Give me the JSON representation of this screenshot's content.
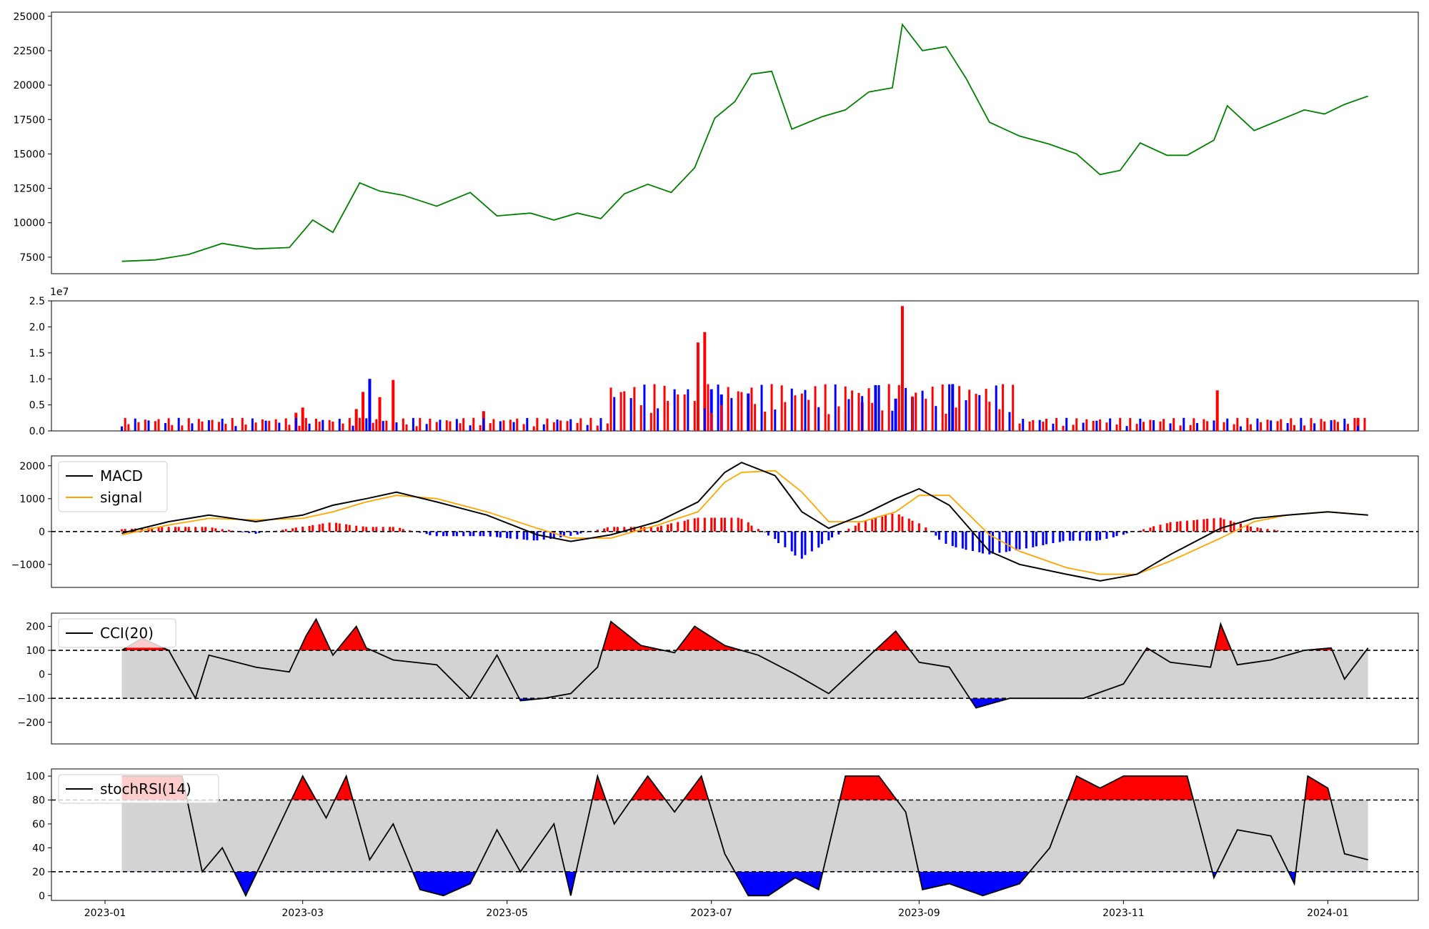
{
  "colors": {
    "price": "#008000",
    "up": "#ff0000",
    "down": "#0000ff",
    "macd": "#000000",
    "signal": "#ffa500",
    "band": "#d3d3d3",
    "zero": "#000000"
  },
  "chart_data": [
    {
      "type": "line",
      "name": "price",
      "ylim": [
        6300,
        25300
      ],
      "yticks": [
        "7500",
        "10000",
        "12500",
        "15000",
        "17500",
        "20000",
        "22500",
        "25000"
      ],
      "series": [
        {
          "color": "#008000",
          "x": [
            "2023-01-06",
            "2023-01-16",
            "2023-01-26",
            "2023-02-05",
            "2023-02-15",
            "2023-02-25",
            "2023-03-04",
            "2023-03-10",
            "2023-03-18",
            "2023-03-24",
            "2023-03-31",
            "2023-04-10",
            "2023-04-20",
            "2023-04-28",
            "2023-05-08",
            "2023-05-15",
            "2023-05-22",
            "2023-05-29",
            "2023-06-05",
            "2023-06-12",
            "2023-06-19",
            "2023-06-26",
            "2023-07-02",
            "2023-07-08",
            "2023-07-13",
            "2023-07-19",
            "2023-07-25",
            "2023-08-03",
            "2023-08-10",
            "2023-08-17",
            "2023-08-24",
            "2023-08-27",
            "2023-09-02",
            "2023-09-09",
            "2023-09-15",
            "2023-09-22",
            "2023-10-01",
            "2023-10-10",
            "2023-10-18",
            "2023-10-25",
            "2023-10-31",
            "2023-11-06",
            "2023-11-14",
            "2023-11-20",
            "2023-11-28",
            "2023-12-02",
            "2023-12-10",
            "2023-12-18",
            "2023-12-25",
            "2023-12-31",
            "2024-01-06",
            "2024-01-13"
          ],
          "values": [
            7200,
            7300,
            7700,
            8500,
            8100,
            8200,
            10200,
            9300,
            12900,
            12300,
            12000,
            11200,
            12200,
            10500,
            10700,
            10200,
            10700,
            10300,
            12100,
            12800,
            12200,
            14000,
            17600,
            18800,
            20800,
            21000,
            16800,
            17700,
            18200,
            19500,
            19800,
            24400,
            22500,
            22800,
            20500,
            17300,
            16300,
            15700,
            15000,
            13500,
            13800,
            15800,
            14900,
            14900,
            16000,
            18500,
            16700,
            17500,
            18200,
            17900,
            18600,
            19200
          ]
        }
      ]
    },
    {
      "type": "bar",
      "name": "volume",
      "multiplier_label": "1e7",
      "ylim": [
        0,
        2.5
      ],
      "yticks": [
        "0.0",
        "0.5",
        "1.0",
        "1.5",
        "2.0",
        "2.5"
      ],
      "series": [
        {
          "name": "spikes",
          "x": [
            "2023-02-27",
            "2023-03-01",
            "2023-03-17",
            "2023-03-19",
            "2023-03-21",
            "2023-03-24",
            "2023-03-28",
            "2023-04-24",
            "2023-06-27",
            "2023-06-29",
            "2023-07-01",
            "2023-07-04",
            "2023-07-12",
            "2023-08-15",
            "2023-08-19",
            "2023-08-25",
            "2023-08-27",
            "2023-08-30",
            "2023-09-11",
            "2023-11-29",
            "2024-01-10"
          ],
          "values": [
            0.35,
            0.45,
            0.42,
            0.75,
            1.0,
            0.65,
            0.98,
            0.38,
            1.7,
            1.9,
            0.8,
            0.7,
            0.72,
            0.55,
            0.88,
            0.62,
            2.4,
            0.65,
            0.9,
            0.78,
            0.25
          ],
          "colors": [
            "up",
            "up",
            "up",
            "up",
            "down",
            "up",
            "up",
            "up",
            "up",
            "up",
            "down",
            "down",
            "down",
            "up",
            "down",
            "down",
            "up",
            "down",
            "down",
            "up",
            "up"
          ]
        }
      ]
    },
    {
      "type": "line",
      "name": "macd",
      "ylim": [
        -1700,
        2300
      ],
      "yticks": [
        "−1000",
        "0",
        "1000",
        "2000"
      ],
      "legend": [
        "MACD",
        "signal"
      ],
      "x": [
        "2023-01-06",
        "2023-01-20",
        "2023-02-01",
        "2023-02-15",
        "2023-03-01",
        "2023-03-10",
        "2023-03-20",
        "2023-03-29",
        "2023-04-10",
        "2023-04-25",
        "2023-05-10",
        "2023-05-20",
        "2023-06-01",
        "2023-06-15",
        "2023-06-27",
        "2023-07-05",
        "2023-07-10",
        "2023-07-20",
        "2023-07-28",
        "2023-08-05",
        "2023-08-15",
        "2023-08-25",
        "2023-09-01",
        "2023-09-10",
        "2023-09-22",
        "2023-10-01",
        "2023-10-15",
        "2023-10-25",
        "2023-11-05",
        "2023-11-15",
        "2023-11-30",
        "2023-12-10",
        "2023-12-20",
        "2024-01-01",
        "2024-01-13"
      ],
      "series": [
        {
          "name": "MACD",
          "values": [
            -50,
            300,
            500,
            300,
            500,
            800,
            1000,
            1200,
            900,
            500,
            -100,
            -300,
            -100,
            300,
            900,
            1800,
            2100,
            1700,
            600,
            100,
            500,
            1000,
            1300,
            800,
            -600,
            -1000,
            -1300,
            -1500,
            -1300,
            -700,
            100,
            400,
            500,
            600,
            500
          ]
        },
        {
          "name": "signal",
          "values": [
            -100,
            200,
            400,
            350,
            400,
            600,
            900,
            1100,
            1000,
            600,
            100,
            -200,
            -200,
            200,
            600,
            1500,
            1800,
            1850,
            1200,
            300,
            300,
            600,
            1100,
            1100,
            -100,
            -600,
            -1100,
            -1300,
            -1300,
            -900,
            -200,
            300,
            500,
            600,
            500
          ]
        }
      ]
    },
    {
      "type": "line",
      "name": "cci",
      "ylim": [
        -290,
        255
      ],
      "yticks": [
        "−200",
        "−100",
        "0",
        "100",
        "200"
      ],
      "legend": [
        "CCI(20)"
      ],
      "thresholds": [
        100,
        -100
      ],
      "x": [
        "2023-01-06",
        "2023-01-12",
        "2023-01-20",
        "2023-01-28",
        "2023-02-01",
        "2023-02-15",
        "2023-02-25",
        "2023-03-02",
        "2023-03-05",
        "2023-03-10",
        "2023-03-17",
        "2023-03-20",
        "2023-03-28",
        "2023-04-10",
        "2023-04-20",
        "2023-04-28",
        "2023-05-05",
        "2023-05-12",
        "2023-05-20",
        "2023-05-28",
        "2023-06-01",
        "2023-06-10",
        "2023-06-20",
        "2023-06-26",
        "2023-07-05",
        "2023-07-15",
        "2023-07-26",
        "2023-08-05",
        "2023-08-15",
        "2023-08-25",
        "2023-09-01",
        "2023-09-10",
        "2023-09-18",
        "2023-09-28",
        "2023-10-10",
        "2023-10-20",
        "2023-11-01",
        "2023-11-08",
        "2023-11-15",
        "2023-11-27",
        "2023-11-30",
        "2023-12-05",
        "2023-12-15",
        "2023-12-25",
        "2024-01-02",
        "2024-01-06",
        "2024-01-13"
      ],
      "values": [
        100,
        150,
        100,
        -100,
        80,
        30,
        10,
        160,
        230,
        80,
        200,
        110,
        60,
        40,
        -100,
        80,
        -110,
        -100,
        -80,
        30,
        220,
        120,
        90,
        200,
        120,
        80,
        0,
        -80,
        50,
        180,
        50,
        30,
        -140,
        -100,
        -100,
        -100,
        -40,
        110,
        50,
        30,
        210,
        40,
        60,
        100,
        110,
        -20,
        110
      ]
    },
    {
      "type": "line",
      "name": "stochrsi",
      "ylim": [
        -4,
        106
      ],
      "yticks": [
        "0",
        "20",
        "40",
        "60",
        "80",
        "100"
      ],
      "xlim": [
        "2022-12-16",
        "2024-01-28"
      ],
      "xticks": [
        "2023-01",
        "2023-03",
        "2023-05",
        "2023-07",
        "2023-09",
        "2023-11",
        "2024-01"
      ],
      "legend": [
        "stochRSI(14)"
      ],
      "thresholds": [
        80,
        20
      ],
      "x": [
        "2023-01-06",
        "2023-01-24",
        "2023-01-30",
        "2023-02-05",
        "2023-02-12",
        "2023-02-18",
        "2023-03-01",
        "2023-03-08",
        "2023-03-14",
        "2023-03-21",
        "2023-03-28",
        "2023-04-05",
        "2023-04-12",
        "2023-04-20",
        "2023-04-28",
        "2023-05-05",
        "2023-05-15",
        "2023-05-20",
        "2023-05-28",
        "2023-06-02",
        "2023-06-12",
        "2023-06-20",
        "2023-06-28",
        "2023-07-05",
        "2023-07-12",
        "2023-07-18",
        "2023-07-26",
        "2023-08-02",
        "2023-08-10",
        "2023-08-20",
        "2023-08-28",
        "2023-09-02",
        "2023-09-10",
        "2023-09-20",
        "2023-10-01",
        "2023-10-10",
        "2023-10-18",
        "2023-10-25",
        "2023-11-01",
        "2023-11-10",
        "2023-11-20",
        "2023-11-28",
        "2023-12-05",
        "2023-12-15",
        "2023-12-22",
        "2023-12-26",
        "2024-01-01",
        "2024-01-06",
        "2024-01-13"
      ],
      "values": [
        100,
        100,
        20,
        40,
        0,
        35,
        100,
        65,
        100,
        30,
        60,
        5,
        0,
        10,
        55,
        20,
        60,
        0,
        100,
        60,
        100,
        70,
        100,
        35,
        0,
        0,
        15,
        5,
        100,
        100,
        70,
        5,
        10,
        0,
        10,
        40,
        100,
        90,
        100,
        100,
        100,
        15,
        55,
        50,
        10,
        100,
        90,
        35,
        30
      ]
    }
  ]
}
